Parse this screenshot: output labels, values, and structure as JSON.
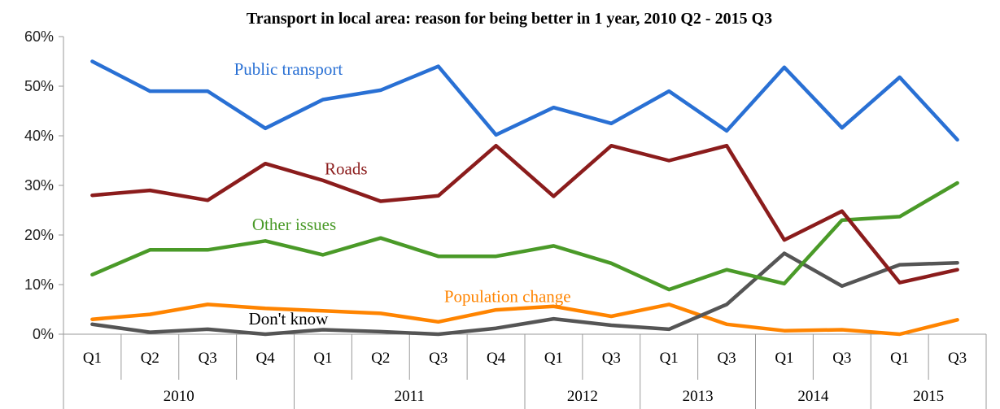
{
  "chart_data": {
    "type": "line",
    "title": "Transport in local area: reason for being better in 1 year, 2010 Q2 - 2015 Q3",
    "xlabel": "",
    "ylabel": "",
    "ylim": [
      0,
      60
    ],
    "yticks": [
      "0%",
      "10%",
      "20%",
      "30%",
      "40%",
      "50%",
      "60%"
    ],
    "grid": false,
    "legend": "inline labels",
    "categories": [
      "Q1",
      "Q2",
      "Q3",
      "Q4",
      "Q1",
      "Q2",
      "Q3",
      "Q4",
      "Q1",
      "Q3",
      "Q1",
      "Q3",
      "Q1",
      "Q3",
      "Q1",
      "Q3"
    ],
    "year_groups": [
      {
        "label": "2010",
        "span": 4
      },
      {
        "label": "2011",
        "span": 4
      },
      {
        "label": "2012",
        "span": 2
      },
      {
        "label": "2013",
        "span": 2
      },
      {
        "label": "2014",
        "span": 2
      },
      {
        "label": "2015",
        "span": 2
      }
    ],
    "series": [
      {
        "name": "Public transport",
        "color": "#2970d4",
        "values": [
          55,
          49,
          49,
          41.5,
          47.3,
          49.2,
          54,
          40.2,
          45.7,
          42.5,
          49,
          41,
          53.8,
          41.6,
          51.8,
          39.2
        ]
      },
      {
        "name": "Roads",
        "color": "#8b1c1c",
        "values": [
          28,
          29,
          27,
          34.4,
          31,
          26.8,
          27.9,
          38,
          27.8,
          38,
          35,
          38,
          19,
          24.8,
          10.4,
          13
        ]
      },
      {
        "name": "Other issues",
        "color": "#4a9a28",
        "values": [
          12,
          17,
          17,
          18.8,
          16,
          19.4,
          15.7,
          15.7,
          17.8,
          14.3,
          9,
          13,
          10.2,
          23,
          23.7,
          30.5
        ]
      },
      {
        "name": "Population change",
        "color": "#ff8400",
        "values": [
          3,
          4,
          6,
          5.2,
          4.7,
          4.2,
          2.5,
          4.9,
          5.6,
          3.6,
          6,
          2,
          0.7,
          0.9,
          0,
          2.9
        ]
      },
      {
        "name": "Don't know",
        "color": "#555555",
        "values": [
          2,
          0.4,
          1,
          0,
          0.9,
          0.5,
          0,
          1.2,
          3.1,
          1.8,
          1,
          6,
          16.3,
          9.7,
          14,
          14.4
        ]
      }
    ]
  }
}
